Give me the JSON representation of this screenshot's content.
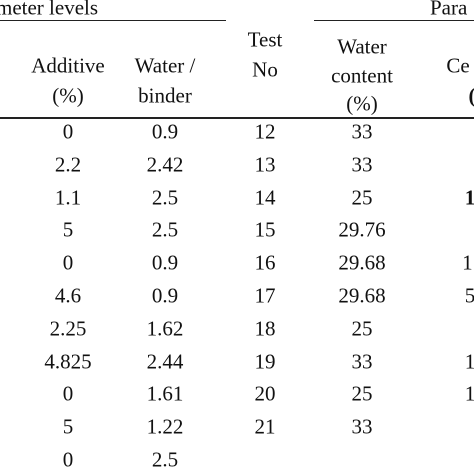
{
  "header": {
    "group_left": "meter levels",
    "group_right": "Para"
  },
  "table": {
    "columns": [
      [
        "Additive",
        "(%)"
      ],
      [
        "Water /",
        "binder"
      ],
      [
        "Test",
        "No"
      ],
      [
        "Water",
        "content",
        "(%)"
      ],
      [
        "Ce",
        "("
      ]
    ],
    "rows": [
      [
        "0",
        "0.9",
        "12",
        "33",
        null
      ],
      [
        "2.2",
        "2.42",
        "13",
        "33",
        null
      ],
      [
        "1.1",
        "2.5",
        "14",
        "25",
        "1"
      ],
      [
        "5",
        "2.5",
        "15",
        "29.76",
        null
      ],
      [
        "0",
        "0.9",
        "16",
        "29.68",
        "1."
      ],
      [
        "4.6",
        "0.9",
        "17",
        "29.68",
        "5"
      ],
      [
        "2.25",
        "1.62",
        "18",
        "25",
        null
      ],
      [
        "4.825",
        "2.44",
        "19",
        "33",
        "1"
      ],
      [
        "0",
        "1.61",
        "20",
        "25",
        "1"
      ],
      [
        "5",
        "1.22",
        "21",
        "33",
        null
      ],
      [
        "0",
        "2.5",
        null,
        null,
        null
      ]
    ]
  }
}
